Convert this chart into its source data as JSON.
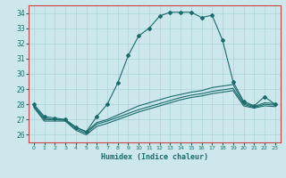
{
  "title": "",
  "xlabel": "Humidex (Indice chaleur)",
  "bg_color": "#cce8ec",
  "grid_color": "#aad4d9",
  "line_color": "#1a6b6b",
  "spine_color": "#cc4444",
  "xlim": [
    -0.5,
    23.5
  ],
  "ylim": [
    25.5,
    34.5
  ],
  "xticks": [
    0,
    1,
    2,
    3,
    4,
    5,
    6,
    7,
    8,
    9,
    10,
    11,
    12,
    13,
    14,
    15,
    16,
    17,
    18,
    19,
    20,
    21,
    22,
    23
  ],
  "yticks": [
    26,
    27,
    28,
    29,
    30,
    31,
    32,
    33,
    34
  ],
  "series": [
    {
      "x": [
        0,
        1,
        2,
        3,
        4,
        5,
        6,
        7,
        8,
        9,
        10,
        11,
        12,
        13,
        14,
        15,
        16,
        17,
        18,
        19,
        20,
        21,
        22,
        23
      ],
      "y": [
        28.0,
        27.2,
        27.1,
        27.0,
        26.5,
        26.2,
        27.2,
        28.0,
        29.4,
        31.2,
        32.5,
        33.0,
        33.8,
        34.05,
        34.05,
        34.05,
        33.7,
        33.85,
        32.2,
        29.5,
        28.2,
        27.9,
        28.5,
        28.0
      ],
      "marker": true
    },
    {
      "x": [
        0,
        1,
        2,
        3,
        4,
        5,
        6,
        7,
        8,
        9,
        10,
        11,
        12,
        13,
        14,
        15,
        16,
        17,
        18,
        19,
        20,
        21,
        22,
        23
      ],
      "y": [
        27.9,
        27.1,
        27.0,
        27.0,
        26.5,
        26.2,
        26.8,
        27.0,
        27.3,
        27.6,
        27.9,
        28.1,
        28.3,
        28.5,
        28.65,
        28.8,
        28.9,
        29.1,
        29.2,
        29.3,
        28.1,
        27.85,
        28.1,
        28.05
      ],
      "marker": false
    },
    {
      "x": [
        0,
        1,
        2,
        3,
        4,
        5,
        6,
        7,
        8,
        9,
        10,
        11,
        12,
        13,
        14,
        15,
        16,
        17,
        18,
        19,
        20,
        21,
        22,
        23
      ],
      "y": [
        27.85,
        27.0,
        27.0,
        26.95,
        26.4,
        26.1,
        26.7,
        26.9,
        27.15,
        27.4,
        27.65,
        27.85,
        28.05,
        28.25,
        28.45,
        28.6,
        28.7,
        28.85,
        28.95,
        29.05,
        28.0,
        27.8,
        28.0,
        27.95
      ],
      "marker": false
    },
    {
      "x": [
        0,
        1,
        2,
        3,
        4,
        5,
        6,
        7,
        8,
        9,
        10,
        11,
        12,
        13,
        14,
        15,
        16,
        17,
        18,
        19,
        20,
        21,
        22,
        23
      ],
      "y": [
        27.8,
        26.9,
        26.9,
        26.9,
        26.3,
        26.0,
        26.55,
        26.75,
        27.0,
        27.25,
        27.5,
        27.7,
        27.9,
        28.1,
        28.3,
        28.45,
        28.55,
        28.7,
        28.8,
        28.9,
        27.9,
        27.75,
        27.9,
        27.85
      ],
      "marker": false
    }
  ]
}
